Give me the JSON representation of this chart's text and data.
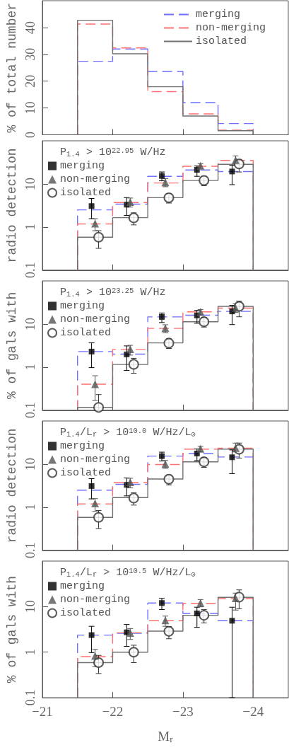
{
  "chart_data": [
    {
      "type": "histogram",
      "ylabel": "% of total number",
      "bins": [
        -21.5,
        -22,
        -22.5,
        -23,
        -23.5,
        -24
      ],
      "xlim": [
        -21,
        -24.5
      ],
      "xticks": [
        -21,
        -22,
        -23,
        -24
      ],
      "ylim": [
        0,
        50
      ],
      "yticks": [
        0,
        10,
        20,
        30,
        40
      ],
      "tick_labels": "y",
      "legend": "top right",
      "series": [
        {
          "name": "merging",
          "color": "#7070ff",
          "line_style": "dashed",
          "values": [
            27.4,
            32.0,
            23.6,
            12.0,
            4.2
          ]
        },
        {
          "name": "non-merging",
          "color": "#ff7070",
          "line_style": "dashed",
          "values": [
            41.3,
            32.4,
            16.1,
            7.8,
            1.7
          ]
        },
        {
          "name": "isolated",
          "color": "#707070",
          "line_style": "solid",
          "values": [
            42.7,
            30.2,
            17.9,
            7.0,
            1.5
          ]
        }
      ]
    },
    {
      "type": "histogram",
      "ylabel": "radio detection",
      "legend_title": "P$_{1.4}$ > 10$^{22.95}$ W/Hz",
      "bins": [
        -21.5,
        -22,
        -22.5,
        -23,
        -23.5,
        -24
      ],
      "xlim": [
        -21,
        -24.5
      ],
      "xticks": [
        -21,
        -22,
        -23,
        -24
      ],
      "ylim": [
        0.1,
        100
      ],
      "yticks": [
        0.1,
        1,
        10
      ],
      "log": true,
      "tick_labels": "y",
      "legend": "top left",
      "series": [
        {
          "color": "#7070ff",
          "line_style": "dashed",
          "values": [
            2.5,
            3.4,
            15.0,
            21,
            19.3
          ]
        },
        {
          "color": "#ff7070",
          "line_style": "dashed",
          "values": [
            1.18,
            3.7,
            10.5,
            25.6,
            35
          ]
        },
        {
          "color": "#707070",
          "line_style": "solid",
          "values": [
            0.58,
            1.65,
            4.8,
            12.0,
            28.4
          ]
        },
        {
          "type": "scatter",
          "name": "merging",
          "color": "#000000",
          "marker": "square",
          "x": [
            -21.7,
            -22.2,
            -22.7,
            -23.2,
            -23.7
          ],
          "values": [
            3.06,
            3.3,
            15.3,
            21.2,
            19.4
          ],
          "errors": [
            [
              1.56,
              4.6
            ],
            [
              1.86,
              4.8
            ],
            [
              11.8,
              18.9
            ],
            [
              15,
              26
            ],
            [
              9.6,
              27
            ]
          ]
        },
        {
          "type": "scatter",
          "name": "non-merging",
          "color": "#555555",
          "marker": "triangle",
          "x": [
            -21.75,
            -22.25,
            -22.75,
            -23.25,
            -23.75
          ],
          "values": [
            1.2,
            3.8,
            10.9,
            26.5,
            35.8
          ],
          "errors": [
            [
              0.82,
              1.56
            ],
            [
              2.9,
              4.7
            ],
            [
              8.6,
              13.3
            ],
            [
              23,
              29.6
            ],
            [
              30,
              44.7
            ]
          ]
        },
        {
          "type": "scatter",
          "name": "isolated",
          "color": "#333333",
          "marker": "circle",
          "x": [
            -21.8,
            -22.3,
            -22.8,
            -23.3,
            -23.8
          ],
          "values": [
            0.58,
            1.63,
            4.76,
            12,
            29
          ],
          "errors": [
            [
              0.32,
              0.82
            ],
            [
              1.12,
              2.13
            ],
            [
              3.6,
              5.95
            ],
            [
              9.1,
              15
            ],
            [
              18.9,
              37
            ]
          ]
        }
      ]
    },
    {
      "type": "histogram",
      "ylabel": "% of gals with",
      "legend_title": "P$_{1.4}$ > 10$^{23.25}$ W/Hz",
      "bins": [
        -21.5,
        -22,
        -22.5,
        -23,
        -23.5,
        -24
      ],
      "xlim": [
        -21,
        -24.5
      ],
      "xticks": [
        -21,
        -22,
        -23,
        -24
      ],
      "ylim": [
        0.1,
        100
      ],
      "yticks": [
        0.1,
        1,
        10
      ],
      "log": true,
      "tick_labels": "y",
      "legend": "top left",
      "series": [
        {
          "color": "#7070ff",
          "line_style": "dashed",
          "values": [
            2.29,
            2.0,
            14.6,
            16,
            19.6
          ]
        },
        {
          "color": "#ff7070",
          "line_style": "dashed",
          "values": [
            0.4,
            2.57,
            7.9,
            19.1,
            23.3
          ]
        },
        {
          "color": "#707070",
          "line_style": "solid",
          "values": [
            0.116,
            1.15,
            3.65,
            11.3,
            25.6
          ]
        },
        {
          "type": "scatter",
          "name": "merging",
          "color": "#000000",
          "marker": "square",
          "x": [
            -21.7,
            -22.2,
            -22.7,
            -23.2,
            -23.7
          ],
          "values": [
            2.29,
            1.97,
            14.6,
            15.8,
            19.6
          ],
          "errors": [
            [
              0.97,
              3.65
            ],
            [
              0.84,
              3.1
            ],
            [
              10.8,
              18
            ],
            [
              10.4,
              20.7
            ],
            [
              9.7,
              27
            ]
          ]
        },
        {
          "type": "scatter",
          "name": "non-merging",
          "color": "#555555",
          "marker": "triangle",
          "x": [
            -21.75,
            -22.25,
            -22.75,
            -23.25,
            -23.75
          ],
          "values": [
            0.4,
            2.6,
            8.0,
            19.1,
            23.5
          ],
          "errors": [
            [
              0.168,
              0.63
            ],
            [
              1.9,
              3.2
            ],
            [
              6.3,
              9.6
            ],
            [
              16.4,
              21.7
            ],
            [
              18.5,
              29.7
            ]
          ]
        },
        {
          "type": "scatter",
          "name": "isolated",
          "color": "#333333",
          "marker": "circle",
          "x": [
            -21.8,
            -22.3,
            -22.8,
            -23.3,
            -23.8
          ],
          "values": [
            0.116,
            1.16,
            3.6,
            11.3,
            25.6
          ],
          "errors": [
            [
              0.1,
              0.23
            ],
            [
              0.72,
              1.6
            ],
            [
              2.7,
              4.55
            ],
            [
              8.5,
              14.3
            ],
            [
              14.7,
              34
            ]
          ]
        }
      ]
    },
    {
      "type": "histogram",
      "ylabel": "radio detection",
      "legend_title": "P$_{1.4}$/L$_{r}$ > 10$^{10.0}$ W/Hz/L$_{⊙}$",
      "bins": [
        -21.5,
        -22,
        -22.5,
        -23,
        -23.5,
        -24
      ],
      "xlim": [
        -21,
        -24.5
      ],
      "xticks": [
        -21,
        -22,
        -23,
        -24
      ],
      "ylim": [
        0.1,
        100
      ],
      "yticks": [
        0.1,
        1,
        10
      ],
      "log": true,
      "tick_labels": "y",
      "legend": "top left",
      "series": [
        {
          "color": "#7070ff",
          "line_style": "dashed",
          "values": [
            2.48,
            3.4,
            15.3,
            17.6,
            14.6
          ]
        },
        {
          "color": "#ff7070",
          "line_style": "dashed",
          "values": [
            1.19,
            3.73,
            9.8,
            22.2,
            23.3
          ]
        },
        {
          "color": "#707070",
          "line_style": "solid",
          "values": [
            0.58,
            1.67,
            4.5,
            11.3,
            22.2
          ]
        },
        {
          "type": "scatter",
          "name": "merging",
          "color": "#000000",
          "marker": "square",
          "x": [
            -21.7,
            -22.2,
            -22.7,
            -23.2,
            -23.7
          ],
          "values": [
            3.1,
            3.3,
            15.3,
            17.6,
            14.4
          ],
          "errors": [
            [
              1.56,
              4.6
            ],
            [
              1.83,
              4.76
            ],
            [
              11.8,
              18.9
            ],
            [
              12,
              22.4
            ],
            [
              6.0,
              21.3
            ]
          ]
        },
        {
          "type": "scatter",
          "name": "non-merging",
          "color": "#555555",
          "marker": "triangle",
          "x": [
            -21.75,
            -22.25,
            -22.75,
            -23.25,
            -23.75
          ],
          "values": [
            1.22,
            3.8,
            10.1,
            22.7,
            23.5
          ],
          "errors": [
            [
              0.8,
              1.58
            ],
            [
              2.8,
              4.7
            ],
            [
              8.0,
              12.1
            ],
            [
              19.4,
              26
            ],
            [
              19.1,
              30.7
            ]
          ]
        },
        {
          "type": "scatter",
          "name": "isolated",
          "color": "#333333",
          "marker": "circle",
          "x": [
            -21.8,
            -22.3,
            -22.8,
            -23.3,
            -23.8
          ],
          "values": [
            0.58,
            1.63,
            4.45,
            11.3,
            22
          ],
          "errors": [
            [
              0.32,
              0.84
            ],
            [
              1.12,
              2.16
            ],
            [
              3.3,
              5.6
            ],
            [
              8.4,
              14.3
            ],
            [
              13.8,
              30.7
            ]
          ]
        }
      ]
    },
    {
      "type": "histogram",
      "ylabel": "% of gals with",
      "xlabel": "M$_{r}$",
      "legend_title": "P$_{1.4}$/L$_{r}$ > 10$^{10.5}$ W/Hz/L$_{⊙}$",
      "bins": [
        -21.5,
        -22,
        -22.5,
        -23,
        -23.5,
        -24
      ],
      "xlim": [
        -21,
        -24.5
      ],
      "xticks": [
        -21,
        -22,
        -23,
        -24
      ],
      "ylim": [
        0.1,
        100
      ],
      "yticks": [
        0.1,
        1,
        10
      ],
      "log": true,
      "legend": "top left",
      "series": [
        {
          "color": "#7070ff",
          "line_style": "dashed",
          "values": [
            2.37,
            2.6,
            12,
            7.1,
            4.9
          ]
        },
        {
          "color": "#ff7070",
          "line_style": "dashed",
          "values": [
            0.8,
            2.66,
            4.9,
            11.8,
            15
          ]
        },
        {
          "color": "#707070",
          "line_style": "solid",
          "values": [
            0.59,
            1.0,
            2.9,
            6.45,
            16
          ]
        },
        {
          "type": "scatter",
          "name": "merging",
          "color": "#000000",
          "marker": "square",
          "x": [
            -21.7,
            -22.2,
            -22.7,
            -23.2,
            -23.7
          ],
          "values": [
            2.37,
            2.73,
            12,
            7.1,
            4.9
          ],
          "errors": [
            [
              0.98,
              3.7
            ],
            [
              1.34,
              4.05
            ],
            [
              8.6,
              15.1
            ],
            [
              3.5,
              9.7
            ],
            [
              0.1,
              9.7
            ]
          ]
        },
        {
          "type": "scatter",
          "name": "non-merging",
          "color": "#555555",
          "marker": "triangle",
          "x": [
            -21.75,
            -22.25,
            -22.75,
            -23.25,
            -23.75
          ],
          "values": [
            0.83,
            2.66,
            5.0,
            12,
            15.3
          ],
          "errors": [
            [
              0.48,
              1.15
            ],
            [
              1.9,
              3.3
            ],
            [
              3.7,
              6.2
            ],
            [
              9.9,
              14.3
            ],
            [
              8.4,
              19.8
            ]
          ]
        },
        {
          "type": "scatter",
          "name": "isolated",
          "color": "#333333",
          "marker": "circle",
          "x": [
            -21.8,
            -22.3,
            -22.8,
            -23.3,
            -23.8
          ],
          "values": [
            0.59,
            1.0,
            2.86,
            6.45,
            16.2
          ],
          "errors": [
            [
              0.34,
              0.85
            ],
            [
              0.59,
              1.42
            ],
            [
              1.97,
              3.65
            ],
            [
              4.4,
              8.6
            ],
            [
              9.0,
              23.3
            ]
          ]
        }
      ]
    }
  ]
}
